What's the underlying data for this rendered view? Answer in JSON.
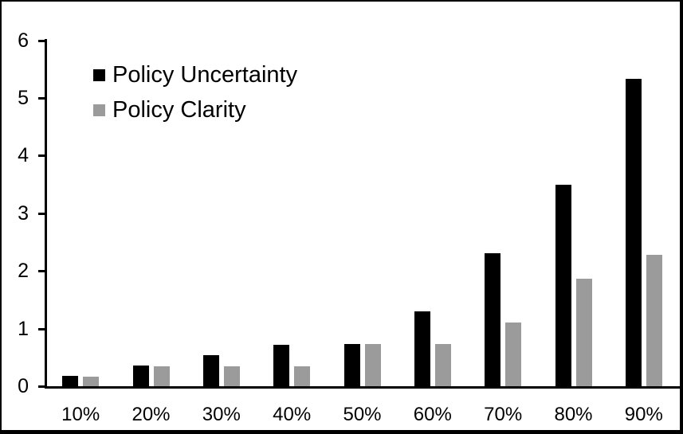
{
  "chart_data": {
    "type": "bar",
    "title": "",
    "xlabel": "",
    "ylabel": "",
    "categories": [
      "10%",
      "20%",
      "30%",
      "40%",
      "50%",
      "60%",
      "70%",
      "80%",
      "90%"
    ],
    "series": [
      {
        "name": "Policy Uncertainty",
        "color": "#000000",
        "values": [
          0.18,
          0.36,
          0.54,
          0.72,
          0.73,
          1.3,
          2.3,
          3.5,
          5.33
        ]
      },
      {
        "name": "Policy Clarity",
        "color": "#9b9b9b",
        "values": [
          0.16,
          0.34,
          0.35,
          0.34,
          0.73,
          0.73,
          1.11,
          1.87,
          2.28
        ]
      }
    ],
    "ylim": [
      0,
      6
    ],
    "y_ticks": [
      0,
      1,
      2,
      3,
      4,
      5,
      6
    ],
    "grid": false,
    "legend_position": "top-left",
    "axis_color": "#000000",
    "background_color": "#ffffff",
    "border_color": "#000000"
  }
}
